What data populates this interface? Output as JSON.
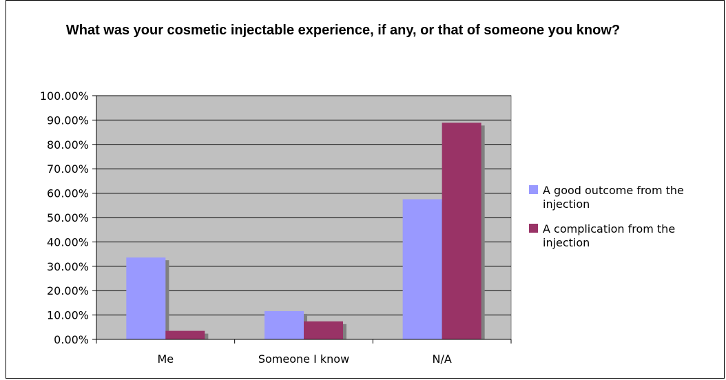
{
  "chart_data": {
    "type": "bar",
    "title": "What was your cosmetic injectable experience, if any, or that of someone you know?",
    "xlabel": "",
    "ylabel": "",
    "categories": [
      "Me",
      "Someone I know",
      "N/A"
    ],
    "series": [
      {
        "name": "A good outcome from the injection",
        "color": "#9999ff",
        "values": [
          33.6,
          11.6,
          57.5
        ]
      },
      {
        "name": "A complication from the injection",
        "color": "#993366",
        "values": [
          3.5,
          7.4,
          88.9
        ]
      }
    ],
    "ylim": [
      0,
      100
    ],
    "yticks": [
      0,
      10,
      20,
      30,
      40,
      50,
      60,
      70,
      80,
      90,
      100
    ],
    "ytick_labels": [
      "0.00%",
      "10.00%",
      "20.00%",
      "30.00%",
      "40.00%",
      "50.00%",
      "60.00%",
      "70.00%",
      "80.00%",
      "90.00%",
      "100.00%"
    ],
    "grid": true,
    "plot_background": "#c0c0c0",
    "legend_position": "right"
  }
}
